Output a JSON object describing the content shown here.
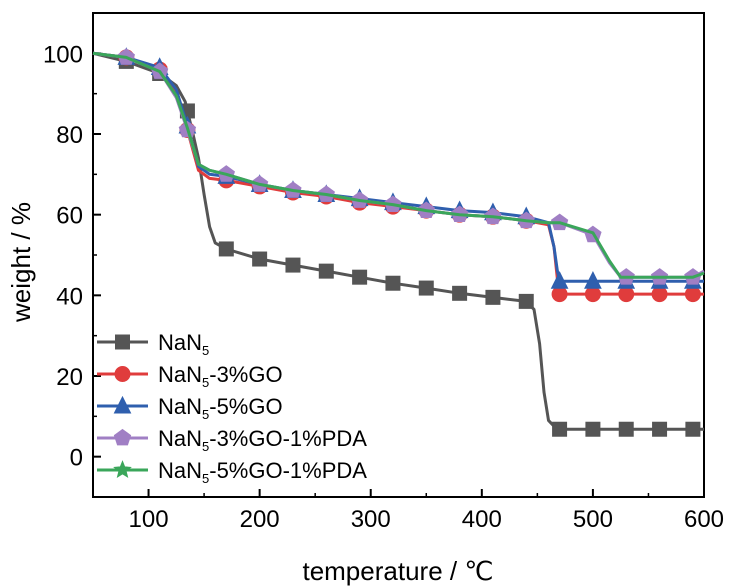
{
  "chart_data": {
    "type": "line",
    "xlabel": "temperature / ℃",
    "ylabel": "weight / %",
    "xlim": [
      50,
      600
    ],
    "ylim": [
      -10,
      110
    ],
    "x_ticks": [
      100,
      200,
      300,
      400,
      500,
      600
    ],
    "y_ticks": [
      0,
      20,
      40,
      60,
      80,
      100
    ],
    "x_tick_labels": [
      "100",
      "200",
      "300",
      "400",
      "500",
      "600"
    ],
    "y_tick_labels": [
      "0",
      "20",
      "40",
      "60",
      "80",
      "100"
    ],
    "grid": false,
    "legend_position": "bottom-left",
    "series": [
      {
        "name": "NaN5",
        "legend_parts": [
          "NaN",
          "5",
          ""
        ],
        "color": "#555555",
        "marker": "square",
        "points": [
          [
            50,
            100
          ],
          [
            80,
            98
          ],
          [
            110,
            95
          ],
          [
            125,
            92
          ],
          [
            133,
            88
          ],
          [
            140,
            80
          ],
          [
            145,
            74
          ],
          [
            150,
            65
          ],
          [
            155,
            57
          ],
          [
            160,
            53
          ],
          [
            170,
            51.5
          ],
          [
            200,
            49
          ],
          [
            230,
            47.5
          ],
          [
            260,
            46
          ],
          [
            290,
            44.5
          ],
          [
            320,
            43
          ],
          [
            350,
            41.8
          ],
          [
            380,
            40.5
          ],
          [
            410,
            39.5
          ],
          [
            440,
            38.5
          ],
          [
            447,
            36.5
          ],
          [
            452,
            28
          ],
          [
            456,
            16
          ],
          [
            460,
            9
          ],
          [
            467,
            7
          ],
          [
            470,
            6.8
          ],
          [
            500,
            6.8
          ],
          [
            530,
            6.8
          ],
          [
            560,
            6.8
          ],
          [
            590,
            6.8
          ],
          [
            600,
            6.8
          ]
        ],
        "marker_x": [
          80,
          110,
          135,
          170,
          200,
          230,
          260,
          290,
          320,
          350,
          380,
          410,
          440,
          470,
          500,
          530,
          560,
          590
        ]
      },
      {
        "name": "NaN5-3%GO",
        "legend_parts": [
          "NaN",
          "5",
          "-3%GO"
        ],
        "color": "#e03c3c",
        "marker": "circle",
        "points": [
          [
            50,
            100
          ],
          [
            80,
            99
          ],
          [
            110,
            96
          ],
          [
            125,
            90
          ],
          [
            135,
            81
          ],
          [
            145,
            71
          ],
          [
            155,
            69
          ],
          [
            170,
            68.5
          ],
          [
            200,
            67
          ],
          [
            230,
            65.5
          ],
          [
            260,
            64.5
          ],
          [
            290,
            63
          ],
          [
            320,
            62
          ],
          [
            350,
            61
          ],
          [
            380,
            60
          ],
          [
            410,
            59.5
          ],
          [
            440,
            58.5
          ],
          [
            460,
            57.5
          ],
          [
            465,
            52
          ],
          [
            468,
            44
          ],
          [
            470,
            40.3
          ],
          [
            500,
            40.3
          ],
          [
            530,
            40.3
          ],
          [
            560,
            40.3
          ],
          [
            590,
            40.3
          ],
          [
            600,
            40.3
          ]
        ],
        "marker_x": [
          80,
          110,
          135,
          170,
          200,
          230,
          260,
          290,
          320,
          350,
          380,
          410,
          440,
          470,
          500,
          530,
          560,
          590
        ]
      },
      {
        "name": "NaN5-5%GO",
        "legend_parts": [
          "NaN",
          "5",
          "-5%GO"
        ],
        "color": "#2f5fae",
        "marker": "triangle",
        "points": [
          [
            50,
            100
          ],
          [
            80,
            99
          ],
          [
            110,
            96.5
          ],
          [
            125,
            91
          ],
          [
            135,
            82
          ],
          [
            145,
            72
          ],
          [
            155,
            70
          ],
          [
            170,
            69.5
          ],
          [
            200,
            67.5
          ],
          [
            230,
            66
          ],
          [
            260,
            65
          ],
          [
            290,
            64
          ],
          [
            320,
            63
          ],
          [
            350,
            62
          ],
          [
            380,
            61
          ],
          [
            410,
            60.5
          ],
          [
            440,
            59.5
          ],
          [
            460,
            58
          ],
          [
            465,
            52
          ],
          [
            468,
            46
          ],
          [
            470,
            43.5
          ],
          [
            500,
            43.5
          ],
          [
            530,
            43.5
          ],
          [
            560,
            43.5
          ],
          [
            590,
            43.5
          ],
          [
            600,
            43.5
          ]
        ],
        "marker_x": [
          80,
          110,
          135,
          170,
          200,
          230,
          260,
          290,
          320,
          350,
          380,
          410,
          440,
          470,
          500,
          530,
          560,
          590
        ]
      },
      {
        "name": "NaN5-3%GO-1%PDA",
        "legend_parts": [
          "NaN",
          "5",
          "-3%GO-1%PDA"
        ],
        "color": "#a07fc4",
        "marker": "pentagon",
        "points": [
          [
            50,
            100
          ],
          [
            80,
            99
          ],
          [
            110,
            95.5
          ],
          [
            125,
            89
          ],
          [
            135,
            81
          ],
          [
            145,
            72.5
          ],
          [
            155,
            71
          ],
          [
            170,
            70
          ],
          [
            200,
            67.5
          ],
          [
            230,
            66
          ],
          [
            260,
            65
          ],
          [
            290,
            63.5
          ],
          [
            320,
            62.5
          ],
          [
            350,
            61
          ],
          [
            380,
            60
          ],
          [
            410,
            59.5
          ],
          [
            440,
            58.5
          ],
          [
            460,
            58
          ],
          [
            470,
            58
          ],
          [
            500,
            55
          ],
          [
            515,
            48
          ],
          [
            525,
            44.5
          ],
          [
            530,
            44.5
          ],
          [
            560,
            44.5
          ],
          [
            590,
            44.5
          ],
          [
            600,
            46
          ]
        ],
        "marker_x": [
          80,
          110,
          135,
          170,
          200,
          230,
          260,
          290,
          320,
          350,
          380,
          410,
          440,
          470,
          500,
          530,
          560,
          590
        ]
      },
      {
        "name": "NaN5-5%GO-1%PDA",
        "legend_parts": [
          "NaN",
          "5",
          "-5%GO-1%PDA"
        ],
        "color": "#3aa65a",
        "marker": "star",
        "points": [
          [
            50,
            100
          ],
          [
            80,
            99
          ],
          [
            110,
            95.5
          ],
          [
            125,
            89.5
          ],
          [
            135,
            81.5
          ],
          [
            145,
            72.5
          ],
          [
            155,
            71
          ],
          [
            170,
            70
          ],
          [
            200,
            67.5
          ],
          [
            230,
            66
          ],
          [
            260,
            65
          ],
          [
            290,
            63.5
          ],
          [
            320,
            62.5
          ],
          [
            350,
            61
          ],
          [
            380,
            60
          ],
          [
            410,
            59.5
          ],
          [
            440,
            58.5
          ],
          [
            460,
            58
          ],
          [
            470,
            58
          ],
          [
            500,
            55.5
          ],
          [
            515,
            48.5
          ],
          [
            525,
            44.5
          ],
          [
            530,
            44.5
          ],
          [
            560,
            44.5
          ],
          [
            590,
            44.5
          ],
          [
            600,
            45.5
          ]
        ],
        "marker_x": []
      }
    ]
  }
}
